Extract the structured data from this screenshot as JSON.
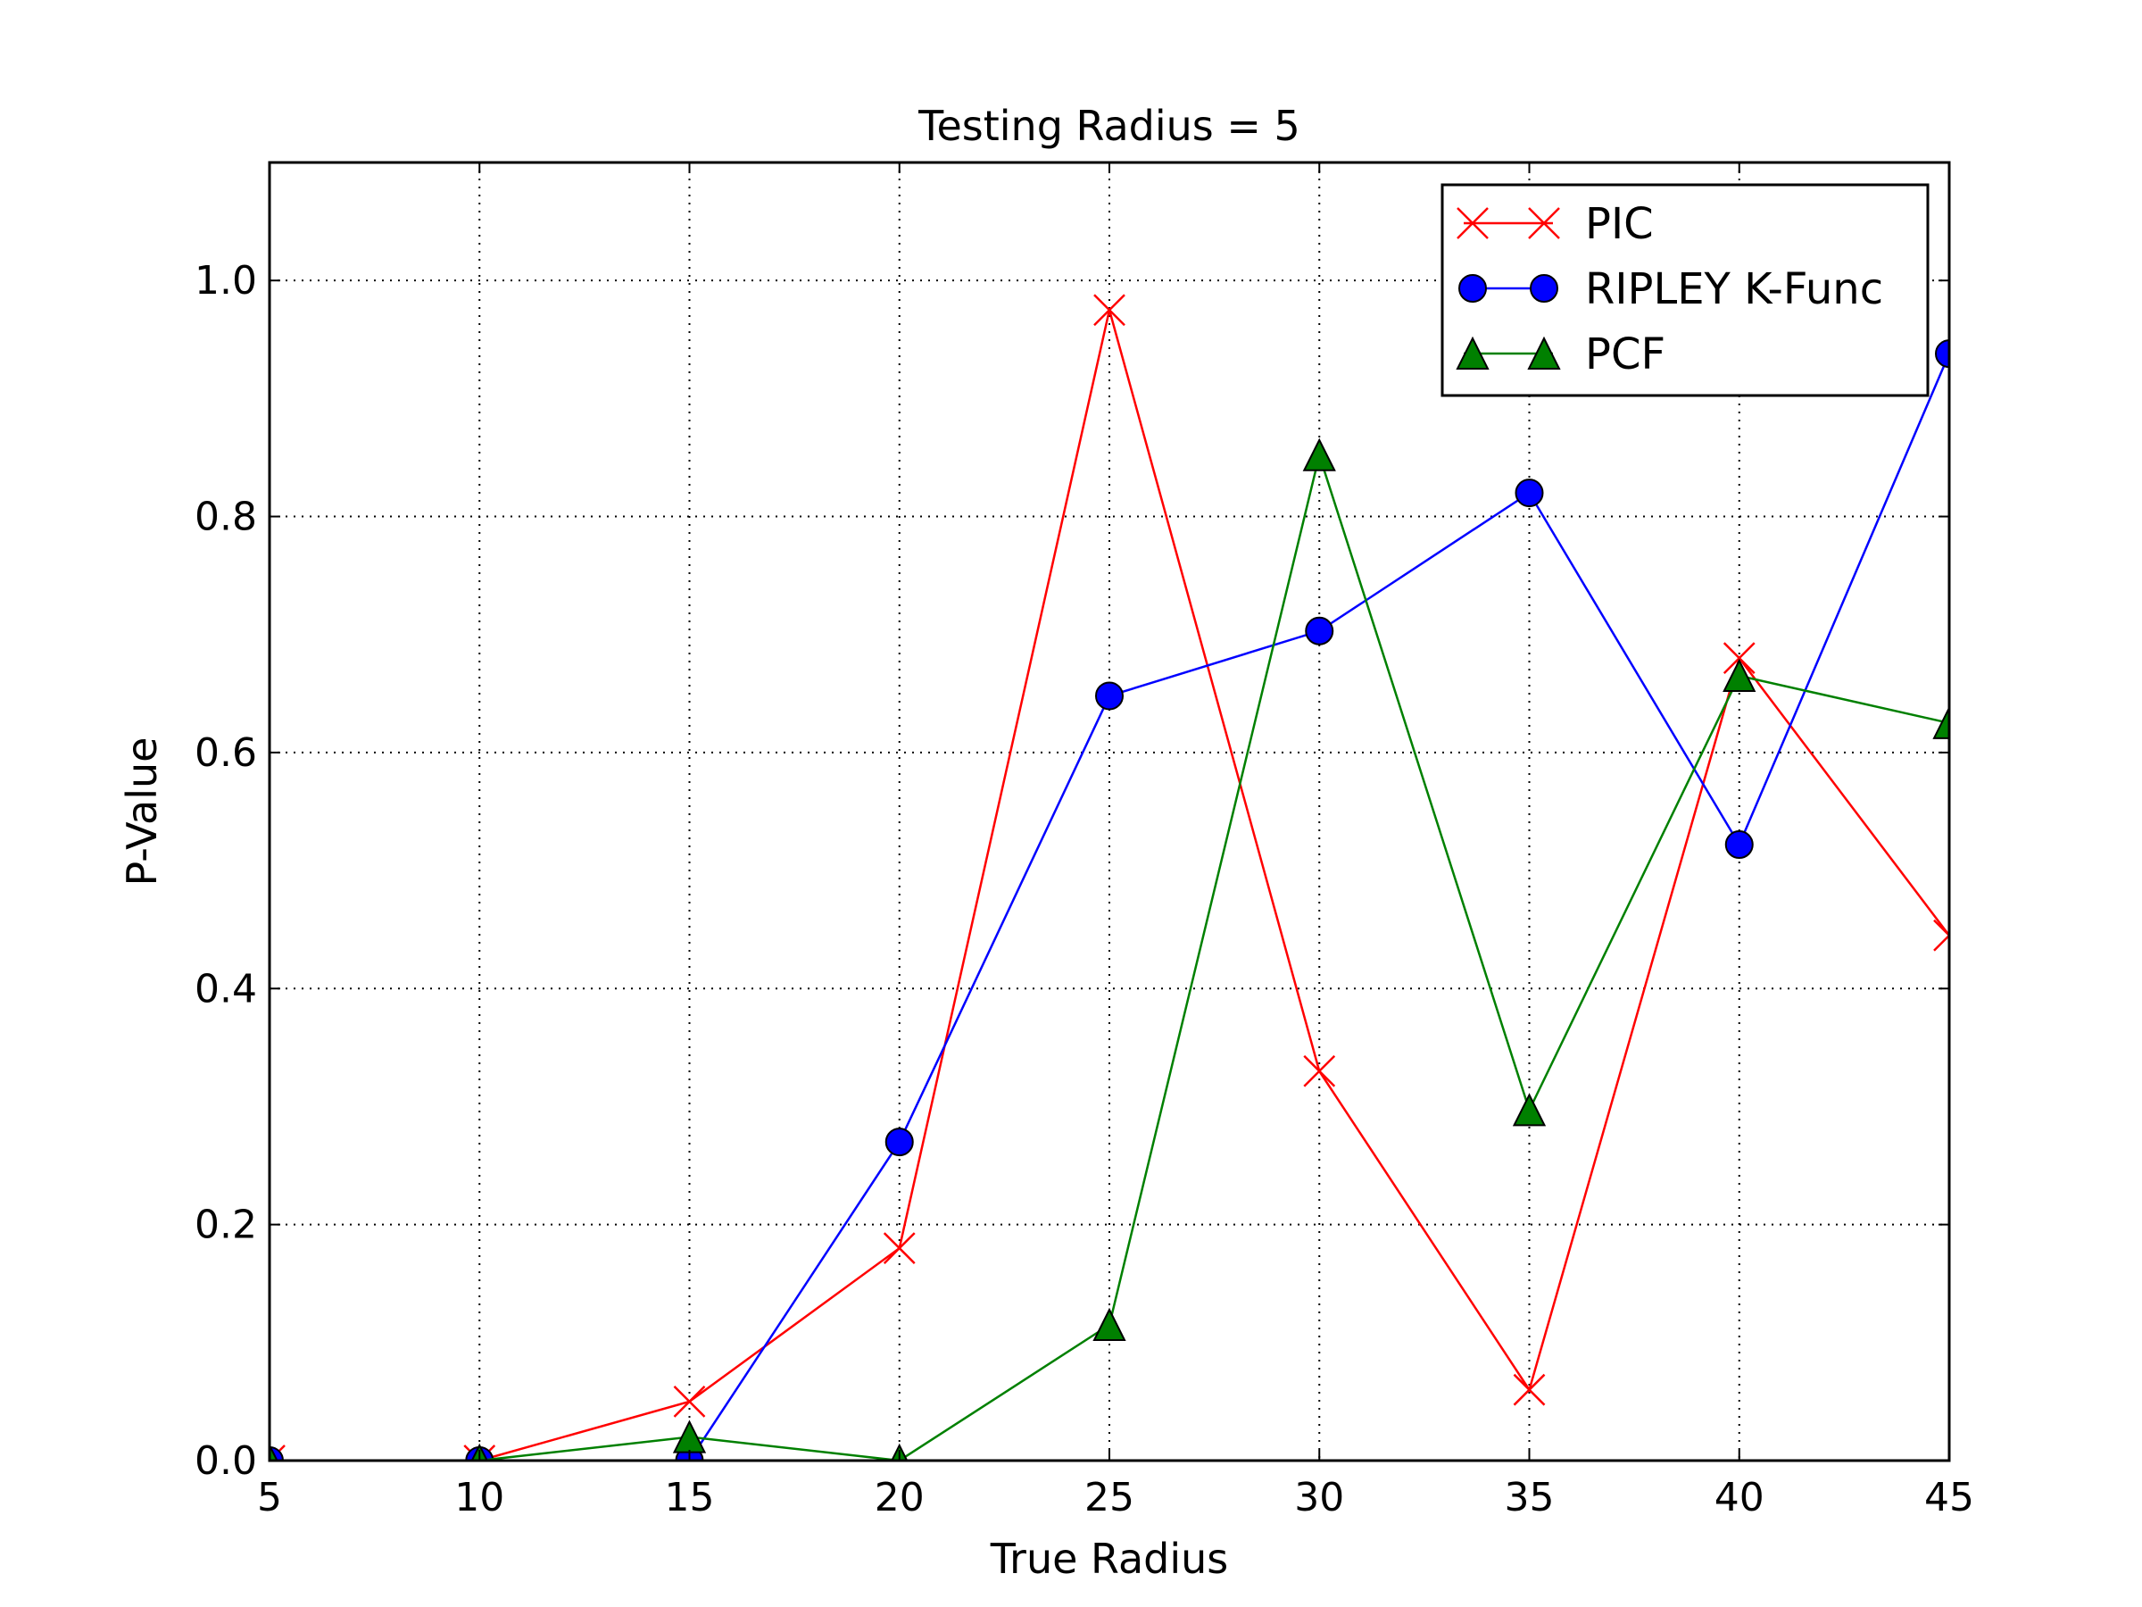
{
  "chart_data": {
    "type": "line",
    "title": "Testing Radius = 5",
    "xlabel": "True Radius",
    "ylabel": "P-Value",
    "xlim": [
      5,
      45
    ],
    "ylim": [
      0,
      1.1
    ],
    "x_ticks": [
      "5",
      "10",
      "15",
      "20",
      "25",
      "30",
      "35",
      "40",
      "45"
    ],
    "y_ticks": [
      "0.0",
      "0.2",
      "0.4",
      "0.6",
      "0.8",
      "1.0"
    ],
    "grid": true,
    "legend_position": "top-right",
    "x": [
      5,
      10,
      15,
      20,
      25,
      30,
      35,
      40,
      45
    ],
    "series": [
      {
        "name": "PIC",
        "color": "#ff0000",
        "marker": "x",
        "values": [
          0.0,
          0.0,
          0.05,
          0.18,
          0.975,
          0.33,
          0.06,
          0.68,
          0.445
        ]
      },
      {
        "name": "RIPLEY K-Func",
        "color": "#0000ff",
        "marker": "circle",
        "values": [
          0.0,
          0.0,
          0.0,
          0.27,
          0.648,
          0.703,
          0.82,
          0.522,
          0.938
        ]
      },
      {
        "name": "PCF",
        "color": "#008000",
        "marker": "triangle",
        "values": [
          0.0,
          0.0,
          0.02,
          0.0,
          0.115,
          0.852,
          0.297,
          0.665,
          0.625
        ]
      }
    ]
  }
}
